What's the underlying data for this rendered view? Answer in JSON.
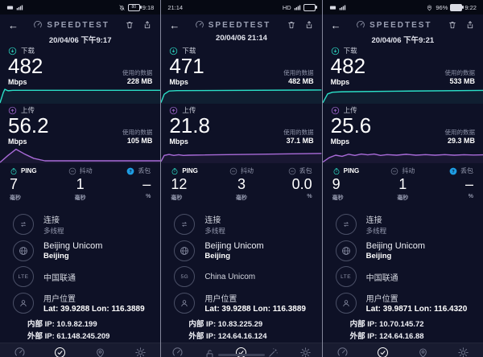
{
  "colors": {
    "teal": "#2be0c8",
    "purple": "#a96bd8",
    "loss_blue": "#1e9de3",
    "bg": "#0e1126",
    "nav_bg": "#181b30"
  },
  "panels": [
    {
      "status": {
        "left": [
          {
            "type": "icon",
            "name": "hd-badge-icon"
          },
          {
            "type": "icon",
            "name": "signal-bars-icon"
          }
        ],
        "right": [
          {
            "type": "icon",
            "name": "bell-slash-icon"
          },
          {
            "type": "battery",
            "label": "80"
          },
          {
            "type": "text",
            "value": "9:18"
          }
        ]
      },
      "header": {
        "logo": "SPEEDTEST",
        "date": "20/04/06 下午9:17"
      },
      "download": {
        "label": "下载",
        "value": "482",
        "unit": "Mbps",
        "data_label": "使用的数据",
        "data_value": "228 MB",
        "spark": [
          [
            0,
            2
          ],
          [
            2,
            72
          ],
          [
            3,
            96
          ],
          [
            5,
            86
          ],
          [
            8,
            89
          ],
          [
            100,
            89
          ]
        ]
      },
      "upload": {
        "label": "上传",
        "value": "56.2",
        "unit": "Mbps",
        "data_label": "使用的数据",
        "data_value": "105 MB",
        "spark": [
          [
            0,
            2
          ],
          [
            5,
            50
          ],
          [
            10,
            93
          ],
          [
            15,
            62
          ],
          [
            21,
            30
          ],
          [
            28,
            13
          ],
          [
            100,
            13
          ]
        ]
      },
      "ping": {
        "label": "PING",
        "value": "7",
        "unit": "毫秒",
        "icon": "stopwatch-icon"
      },
      "jitter": {
        "label": "抖动",
        "value": "1",
        "unit": "毫秒",
        "icon": "minus-circle-icon"
      },
      "loss": {
        "label": "丢包",
        "value": "–",
        "unit": "%",
        "icon": "question-circle-icon"
      },
      "connection": {
        "title": "连接",
        "subtitle": "多线程"
      },
      "isp": {
        "title": "Beijing Unicom",
        "subtitle": "Beijing"
      },
      "carrier": {
        "badge": "LTE",
        "title": "中国联通"
      },
      "location": {
        "title": "用户位置",
        "coords": "Lat: 39.9288 Lon: 116.3889",
        "internal_ip": "内部 IP: 10.9.82.199",
        "external_ip": "外部 IP: 61.148.245.209"
      },
      "nav": [
        {
          "name": "speed",
          "icon": "gauge-icon",
          "label": "速度",
          "active": false
        },
        {
          "name": "results",
          "icon": "check-circle-icon",
          "label": "结果",
          "active": true
        },
        {
          "name": "coverage",
          "icon": "pin-icon",
          "label": "覆盖范围",
          "active": false
        },
        {
          "name": "settings",
          "icon": "gear-icon",
          "label": "设置",
          "active": false
        }
      ],
      "home_indicator": false
    },
    {
      "status": {
        "left": [
          {
            "type": "text",
            "value": "21:14"
          }
        ],
        "right": [
          {
            "type": "text",
            "value": "HD"
          },
          {
            "type": "icon",
            "name": "signal-bars-icon"
          },
          {
            "type": "battery"
          }
        ]
      },
      "header": {
        "logo": "SPEEDTEST",
        "date": "20/04/06 21:14"
      },
      "download": {
        "label": "下载",
        "value": "471",
        "unit": "Mbps",
        "data_label": "使用的数据",
        "data_value": "482 MB",
        "spark": [
          [
            0,
            4
          ],
          [
            2,
            62
          ],
          [
            5,
            84
          ],
          [
            10,
            87
          ],
          [
            100,
            91
          ]
        ]
      },
      "upload": {
        "label": "上传",
        "value": "21.8",
        "unit": "Mbps",
        "data_label": "使用的数据",
        "data_value": "37.1 MB",
        "spark": [
          [
            0,
            8
          ],
          [
            2,
            50
          ],
          [
            5,
            57
          ],
          [
            8,
            50
          ],
          [
            11,
            55
          ],
          [
            14,
            50
          ],
          [
            17,
            52
          ],
          [
            100,
            64
          ]
        ]
      },
      "ping": {
        "label": "PING",
        "value": "12",
        "unit": "毫秒",
        "icon": "stopwatch-icon"
      },
      "jitter": {
        "label": "抖动",
        "value": "3",
        "unit": "毫秒",
        "icon": "minus-circle-icon"
      },
      "loss": {
        "label": "丢包",
        "value": "0.0",
        "unit": "%",
        "icon": "minus-circle-icon"
      },
      "connection": {
        "title": "连接",
        "subtitle": "多线程"
      },
      "isp": {
        "title": "Beijing Unicom",
        "subtitle": "Beijing"
      },
      "carrier": {
        "badge": "5G",
        "title": "China Unicom"
      },
      "location": {
        "title": "用户位置",
        "coords": "Lat: 39.9288 Lon: 116.3889",
        "internal_ip": "内部 IP: 10.83.225.29",
        "external_ip": "外部 IP: 124.64.16.124"
      },
      "nav": [
        {
          "name": "speed",
          "icon": "gauge-icon",
          "label": "速度",
          "active": false
        },
        {
          "name": "vpn",
          "icon": "lock-open-icon",
          "label": "VPN",
          "active": false
        },
        {
          "name": "results",
          "icon": "check-circle-icon",
          "label": "结果",
          "active": true
        },
        {
          "name": "tools",
          "icon": "wand-icon",
          "label": "工具",
          "active": false
        },
        {
          "name": "settings",
          "icon": "gear-icon",
          "label": "设置",
          "active": false
        }
      ],
      "home_indicator": true
    },
    {
      "status": {
        "left": [
          {
            "type": "icon",
            "name": "hd-badge-icon"
          },
          {
            "type": "icon",
            "name": "signal-bars-icon"
          }
        ],
        "right": [
          {
            "type": "icon",
            "name": "location-pin-icon"
          },
          {
            "type": "text",
            "value": "96%"
          },
          {
            "type": "battery",
            "filled": true
          },
          {
            "type": "text",
            "value": "9:22"
          }
        ]
      },
      "header": {
        "logo": "SPEEDTEST",
        "date": "20/04/06 下午9:21"
      },
      "download": {
        "label": "下载",
        "value": "482",
        "unit": "Mbps",
        "data_label": "使用的数据",
        "data_value": "533 MB",
        "spark": [
          [
            0,
            3
          ],
          [
            3,
            64
          ],
          [
            6,
            76
          ],
          [
            12,
            79
          ],
          [
            45,
            83
          ],
          [
            100,
            88
          ]
        ]
      },
      "upload": {
        "label": "上传",
        "value": "25.6",
        "unit": "Mbps",
        "data_label": "使用的数据",
        "data_value": "29.3 MB",
        "spark": [
          [
            0,
            4
          ],
          [
            4,
            35
          ],
          [
            8,
            52
          ],
          [
            12,
            44
          ],
          [
            16,
            58
          ],
          [
            20,
            50
          ],
          [
            24,
            60
          ],
          [
            28,
            54
          ],
          [
            32,
            60
          ],
          [
            36,
            50
          ],
          [
            40,
            56
          ],
          [
            46,
            52
          ],
          [
            52,
            58
          ],
          [
            58,
            52
          ],
          [
            64,
            56
          ],
          [
            70,
            52
          ],
          [
            76,
            56
          ],
          [
            82,
            52
          ],
          [
            88,
            55
          ],
          [
            94,
            53
          ],
          [
            100,
            54
          ]
        ]
      },
      "ping": {
        "label": "PING",
        "value": "9",
        "unit": "毫秒",
        "icon": "stopwatch-icon"
      },
      "jitter": {
        "label": "抖动",
        "value": "1",
        "unit": "毫秒",
        "icon": "minus-circle-icon"
      },
      "loss": {
        "label": "丢包",
        "value": "–",
        "unit": "%",
        "icon": "question-circle-icon"
      },
      "connection": {
        "title": "连接",
        "subtitle": "多线程"
      },
      "isp": {
        "title": "Beijing Unicom",
        "subtitle": "Beijing"
      },
      "carrier": {
        "badge": "LTE",
        "title": "中国联通"
      },
      "location": {
        "title": "用户位置",
        "coords": "Lat: 39.9871 Lon: 116.4320",
        "internal_ip": "内部 IP: 10.70.145.72",
        "external_ip": "外部 IP: 124.64.16.88"
      },
      "nav": [
        {
          "name": "speed",
          "icon": "gauge-icon",
          "label": "速度",
          "active": false
        },
        {
          "name": "results",
          "icon": "check-circle-icon",
          "label": "结果",
          "active": true
        },
        {
          "name": "coverage",
          "icon": "pin-icon",
          "label": "覆盖范围",
          "active": false
        },
        {
          "name": "settings",
          "icon": "gear-icon",
          "label": "设置",
          "active": false
        }
      ],
      "home_indicator": false
    }
  ]
}
